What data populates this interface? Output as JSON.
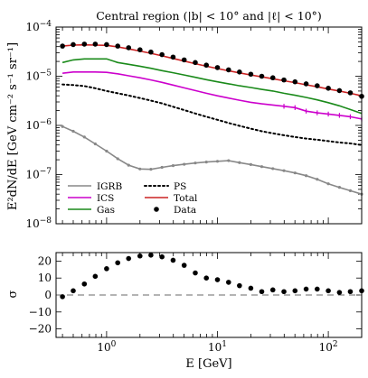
{
  "chart_data": [
    {
      "type": "line",
      "title": "Central region (|b| < 10° and |ℓ| < 10°)",
      "xlabel": "",
      "ylabel": "E²dN/dE [GeV cm⁻² s⁻¹ sr⁻¹]",
      "xscale": "log",
      "yscale": "log",
      "xlim": [
        0.35,
        200
      ],
      "ylim": [
        1e-08,
        0.0001
      ],
      "x_tick_labels": [
        "10^0",
        "10^1",
        "10^2"
      ],
      "y_tick_labels": [
        "10^-4",
        "10^-5",
        "10^-6",
        "10^-7",
        "10^-8"
      ],
      "legend_placement": "bottom-left",
      "x": [
        0.4,
        0.5,
        0.63,
        0.79,
        1.0,
        1.26,
        1.58,
        2.0,
        2.51,
        3.16,
        3.98,
        5.01,
        6.31,
        7.94,
        10.0,
        12.6,
        15.8,
        20.0,
        25.1,
        31.6,
        39.8,
        50.1,
        63.1,
        79.4,
        100,
        126,
        158,
        200
      ],
      "series": [
        {
          "name": "IGRB",
          "color": "#888888",
          "style": "solid",
          "marker": "dot",
          "values": [
            9.5e-07,
            7.6e-07,
            5.8e-07,
            4.2e-07,
            3e-07,
            2.1e-07,
            1.55e-07,
            1.3e-07,
            1.28e-07,
            1.4e-07,
            1.52e-07,
            1.62e-07,
            1.72e-07,
            1.8e-07,
            1.86e-07,
            1.92e-07,
            1.75e-07,
            1.6e-07,
            1.45e-07,
            1.32e-07,
            1.2e-07,
            1.08e-07,
            9.5e-08,
            8e-08,
            6.5e-08,
            5.5e-08,
            4.7e-08,
            4e-08
          ]
        },
        {
          "name": "ICS",
          "color": "#cc00cc",
          "style": "solid",
          "marker": "errorbar",
          "values": [
            1.15e-05,
            1.22e-05,
            1.22e-05,
            1.22e-05,
            1.2e-05,
            1.12e-05,
            1.02e-05,
            9.3e-06,
            8.4e-06,
            7.5e-06,
            6.6e-06,
            5.8e-06,
            5.1e-06,
            4.5e-06,
            4e-06,
            3.6e-06,
            3.25e-06,
            2.95e-06,
            2.75e-06,
            2.6e-06,
            2.45e-06,
            2.3e-06,
            1.95e-06,
            1.8e-06,
            1.7e-06,
            1.6e-06,
            1.5e-06,
            1.35e-06
          ]
        },
        {
          "name": "Gas",
          "color": "#1a8a1a",
          "style": "solid",
          "marker": "none",
          "values": [
            1.9e-05,
            2.15e-05,
            2.25e-05,
            2.25e-05,
            2.25e-05,
            1.9e-05,
            1.75e-05,
            1.6e-05,
            1.45e-05,
            1.3e-05,
            1.18e-05,
            1.06e-05,
            9.5e-06,
            8.5e-06,
            7.7e-06,
            7e-06,
            6.4e-06,
            5.9e-06,
            5.4e-06,
            5e-06,
            4.5e-06,
            4.1e-06,
            3.7e-06,
            3.3e-06,
            2.9e-06,
            2.5e-06,
            2.1e-06,
            1.75e-06
          ]
        },
        {
          "name": "PS",
          "color": "#000000",
          "style": "dotted",
          "marker": "none",
          "values": [
            6.8e-06,
            6.6e-06,
            6.3e-06,
            5.7e-06,
            5e-06,
            4.5e-06,
            4.05e-06,
            3.6e-06,
            3.2e-06,
            2.8e-06,
            2.4e-06,
            2.05e-06,
            1.75e-06,
            1.5e-06,
            1.3e-06,
            1.12e-06,
            9.8e-07,
            8.6e-07,
            7.6e-07,
            6.9e-07,
            6.3e-07,
            5.8e-07,
            5.4e-07,
            5.1e-07,
            4.8e-07,
            4.5e-07,
            4.3e-07,
            4e-07
          ]
        },
        {
          "name": "Total",
          "color": "#cc2222",
          "style": "solid",
          "marker": "none",
          "values": [
            4.1e-05,
            4.3e-05,
            4.35e-05,
            4.3e-05,
            4.25e-05,
            3.95e-05,
            3.6e-05,
            3.25e-05,
            2.92e-05,
            2.6e-05,
            2.3e-05,
            2.03e-05,
            1.8e-05,
            1.6e-05,
            1.43e-05,
            1.29e-05,
            1.17e-05,
            1.06e-05,
            9.7e-06,
            8.9e-06,
            8.1e-06,
            7.4e-06,
            6.7e-06,
            6.1e-06,
            5.5e-06,
            5e-06,
            4.5e-06,
            4e-06
          ]
        },
        {
          "name": "Data",
          "color": "#000000",
          "style": "none",
          "marker": "filled-circle",
          "values": [
            4.1e-05,
            4.4e-05,
            4.5e-05,
            4.5e-05,
            4.4e-05,
            4.1e-05,
            3.8e-05,
            3.45e-05,
            3.1e-05,
            2.75e-05,
            2.45e-05,
            2.15e-05,
            1.9e-05,
            1.68e-05,
            1.5e-05,
            1.35e-05,
            1.22e-05,
            1.1e-05,
            1e-05,
            9.3e-06,
            8.4e-06,
            7.7e-06,
            7e-06,
            6.4e-06,
            5.7e-06,
            5.1e-06,
            4.6e-06,
            3.9e-06
          ]
        }
      ]
    },
    {
      "type": "scatter",
      "xlabel": "E [GeV]",
      "ylabel": "σ",
      "xscale": "log",
      "xlim": [
        0.35,
        200
      ],
      "ylim": [
        -25,
        25
      ],
      "y_ticks": [
        20,
        10,
        0,
        -10,
        -20
      ],
      "x_tick_labels": [
        "10^0",
        "10^1",
        "10^2"
      ],
      "reference_line": {
        "y": 0,
        "style": "dashed",
        "color": "#888888"
      },
      "x": [
        0.4,
        0.5,
        0.63,
        0.79,
        1.0,
        1.26,
        1.58,
        2.0,
        2.51,
        3.16,
        3.98,
        5.01,
        6.31,
        7.94,
        10.0,
        12.6,
        15.8,
        20.0,
        25.1,
        31.6,
        39.8,
        50.1,
        63.1,
        79.4,
        100,
        126,
        158,
        200
      ],
      "values": [
        -1.0,
        2.5,
        6.5,
        11.0,
        15.5,
        19.0,
        21.5,
        23.0,
        23.5,
        22.5,
        20.5,
        17.5,
        13.0,
        10.0,
        9.0,
        7.5,
        5.5,
        4.0,
        2.0,
        3.0,
        2.0,
        2.5,
        3.5,
        3.5,
        2.5,
        1.5,
        2.0,
        2.5
      ]
    }
  ]
}
